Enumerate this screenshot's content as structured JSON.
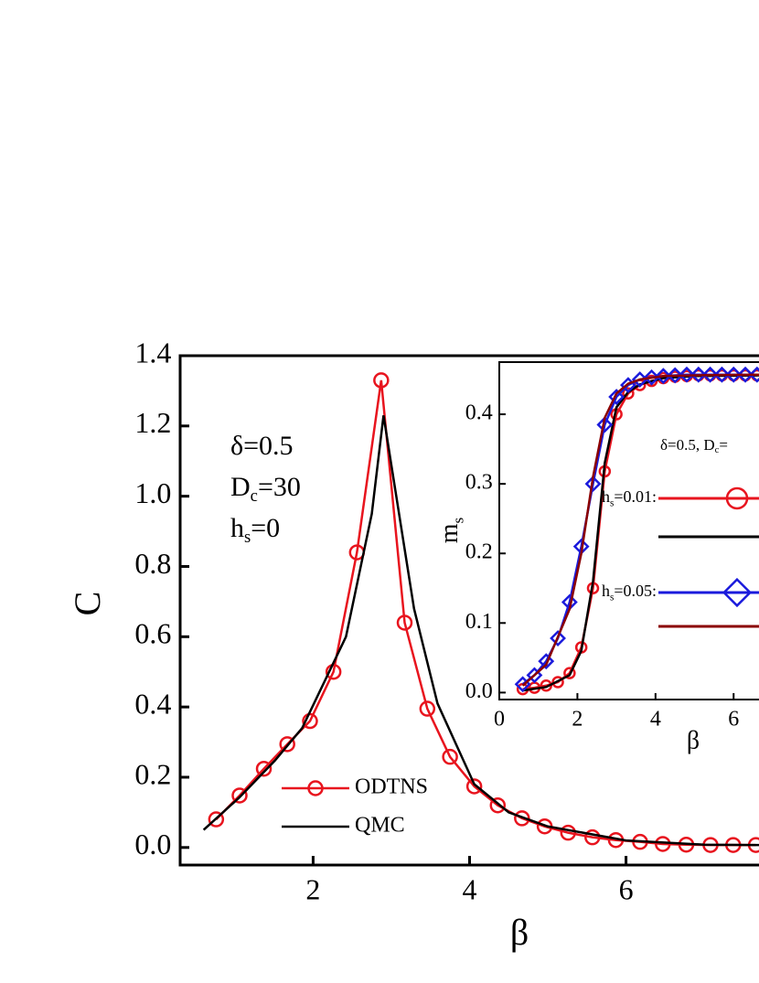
{
  "chart_data": [
    {
      "type": "line",
      "x_label": "β",
      "y_label": "C",
      "xlim": [
        0.3,
        7.7
      ],
      "ylim": [
        -0.05,
        1.4
      ],
      "xticks": [
        2,
        4,
        6
      ],
      "yticks": [
        {
          "value": 0,
          "label": "0.0"
        },
        0.2,
        0.4,
        0.6,
        0.8,
        {
          "value": 1,
          "label": "1.0"
        },
        1.2,
        1.4
      ],
      "legend": "lower left",
      "annotations": [
        [
          {
            "text": "δ=0.5"
          }
        ],
        [
          {
            "text": "D"
          },
          {
            "text": "c",
            "sub": true
          },
          {
            "text": "=30"
          }
        ],
        [
          {
            "text": "h"
          },
          {
            "text": "s",
            "sub": true
          },
          {
            "text": "=0"
          }
        ]
      ],
      "series": [
        {
          "name": "ODTNS",
          "color": "#e8141e",
          "marker": "circle",
          "x": [
            0.76,
            1.06,
            1.37,
            1.67,
            1.96,
            2.26,
            2.56,
            2.87,
            3.17,
            3.46,
            3.75,
            4.06,
            4.36,
            4.67,
            4.96,
            5.26,
            5.57,
            5.87,
            6.18,
            6.47,
            6.77,
            7.08,
            7.37,
            7.66
          ],
          "values": [
            0.08,
            0.148,
            0.224,
            0.294,
            0.36,
            0.5,
            0.84,
            1.33,
            0.64,
            0.395,
            0.258,
            0.174,
            0.12,
            0.083,
            0.06,
            0.042,
            0.029,
            0.021,
            0.016,
            0.01,
            0.008,
            0.007,
            0.007,
            0.007
          ]
        },
        {
          "name": "QMC",
          "color": "#000000",
          "marker": null,
          "x": [
            0.6,
            1.06,
            1.51,
            1.86,
            2.42,
            2.75,
            2.9,
            3.29,
            3.59,
            4.06,
            4.5,
            5.0,
            6.0,
            7.0,
            7.7
          ],
          "values": [
            0.05,
            0.143,
            0.247,
            0.34,
            0.6,
            0.95,
            1.23,
            0.68,
            0.41,
            0.18,
            0.1,
            0.06,
            0.02,
            0.008,
            0.007
          ]
        }
      ]
    },
    {
      "type": "line",
      "x_label": "β",
      "y_label": [
        {
          "text": "m"
        },
        {
          "text": "s",
          "sub": true
        }
      ],
      "xlim": [
        0,
        6.65
      ],
      "ylim": [
        -0.01,
        0.475
      ],
      "xticks": [
        0,
        2,
        4,
        6
      ],
      "yticks": [
        {
          "value": 0,
          "label": "0.0"
        },
        0.1,
        0.2,
        0.3,
        0.4
      ],
      "annotation": [
        {
          "text": "δ=0.5, D"
        },
        {
          "text": "c",
          "sub": true
        },
        {
          "text": "="
        }
      ],
      "series": [
        {
          "name": [
            {
              "text": "h"
            },
            {
              "text": "s",
              "sub": true
            },
            {
              "text": "=0.01:"
            }
          ],
          "color": "#e8141e",
          "marker": "circle",
          "x": [
            0.6,
            0.9,
            1.2,
            1.5,
            1.8,
            2.1,
            2.4,
            2.7,
            3.0,
            3.3,
            3.6,
            3.9,
            4.2,
            4.5,
            4.8,
            5.1,
            5.4,
            5.7,
            6.0,
            6.3,
            6.6
          ],
          "values": [
            0.005,
            0.007,
            0.01,
            0.015,
            0.028,
            0.065,
            0.15,
            0.318,
            0.4,
            0.43,
            0.442,
            0.448,
            0.452,
            0.454,
            0.455,
            0.456,
            0.456,
            0.456,
            0.456,
            0.456,
            0.456
          ]
        },
        {
          "color": "#000000",
          "marker": null,
          "x": [
            0.6,
            1.2,
            1.8,
            2.1,
            2.4,
            2.7,
            3.0,
            3.3,
            3.6,
            4.2,
            5.0,
            6.65
          ],
          "values": [
            0.003,
            0.008,
            0.025,
            0.06,
            0.16,
            0.33,
            0.41,
            0.432,
            0.443,
            0.452,
            0.455,
            0.456
          ]
        },
        {
          "name": [
            {
              "text": "h"
            },
            {
              "text": "s",
              "sub": true
            },
            {
              "text": "=0.05:"
            }
          ],
          "color": "#1a1adc",
          "marker": "diamond",
          "x": [
            0.6,
            0.9,
            1.2,
            1.5,
            1.8,
            2.1,
            2.4,
            2.7,
            3.0,
            3.3,
            3.6,
            3.9,
            4.2,
            4.5,
            4.8,
            5.1,
            5.4,
            5.7,
            6.0,
            6.3,
            6.6
          ],
          "values": [
            0.012,
            0.025,
            0.045,
            0.078,
            0.13,
            0.21,
            0.3,
            0.385,
            0.425,
            0.442,
            0.45,
            0.453,
            0.455,
            0.456,
            0.457,
            0.457,
            0.457,
            0.457,
            0.457,
            0.457,
            0.457
          ]
        },
        {
          "color": "#8b0000",
          "marker": null,
          "x": [
            0.6,
            1.2,
            1.8,
            2.1,
            2.4,
            2.7,
            3.0,
            3.3,
            3.6,
            4.2,
            5.0,
            6.65
          ],
          "values": [
            0.01,
            0.04,
            0.12,
            0.2,
            0.31,
            0.395,
            0.43,
            0.444,
            0.45,
            0.455,
            0.456,
            0.457
          ]
        }
      ]
    }
  ]
}
